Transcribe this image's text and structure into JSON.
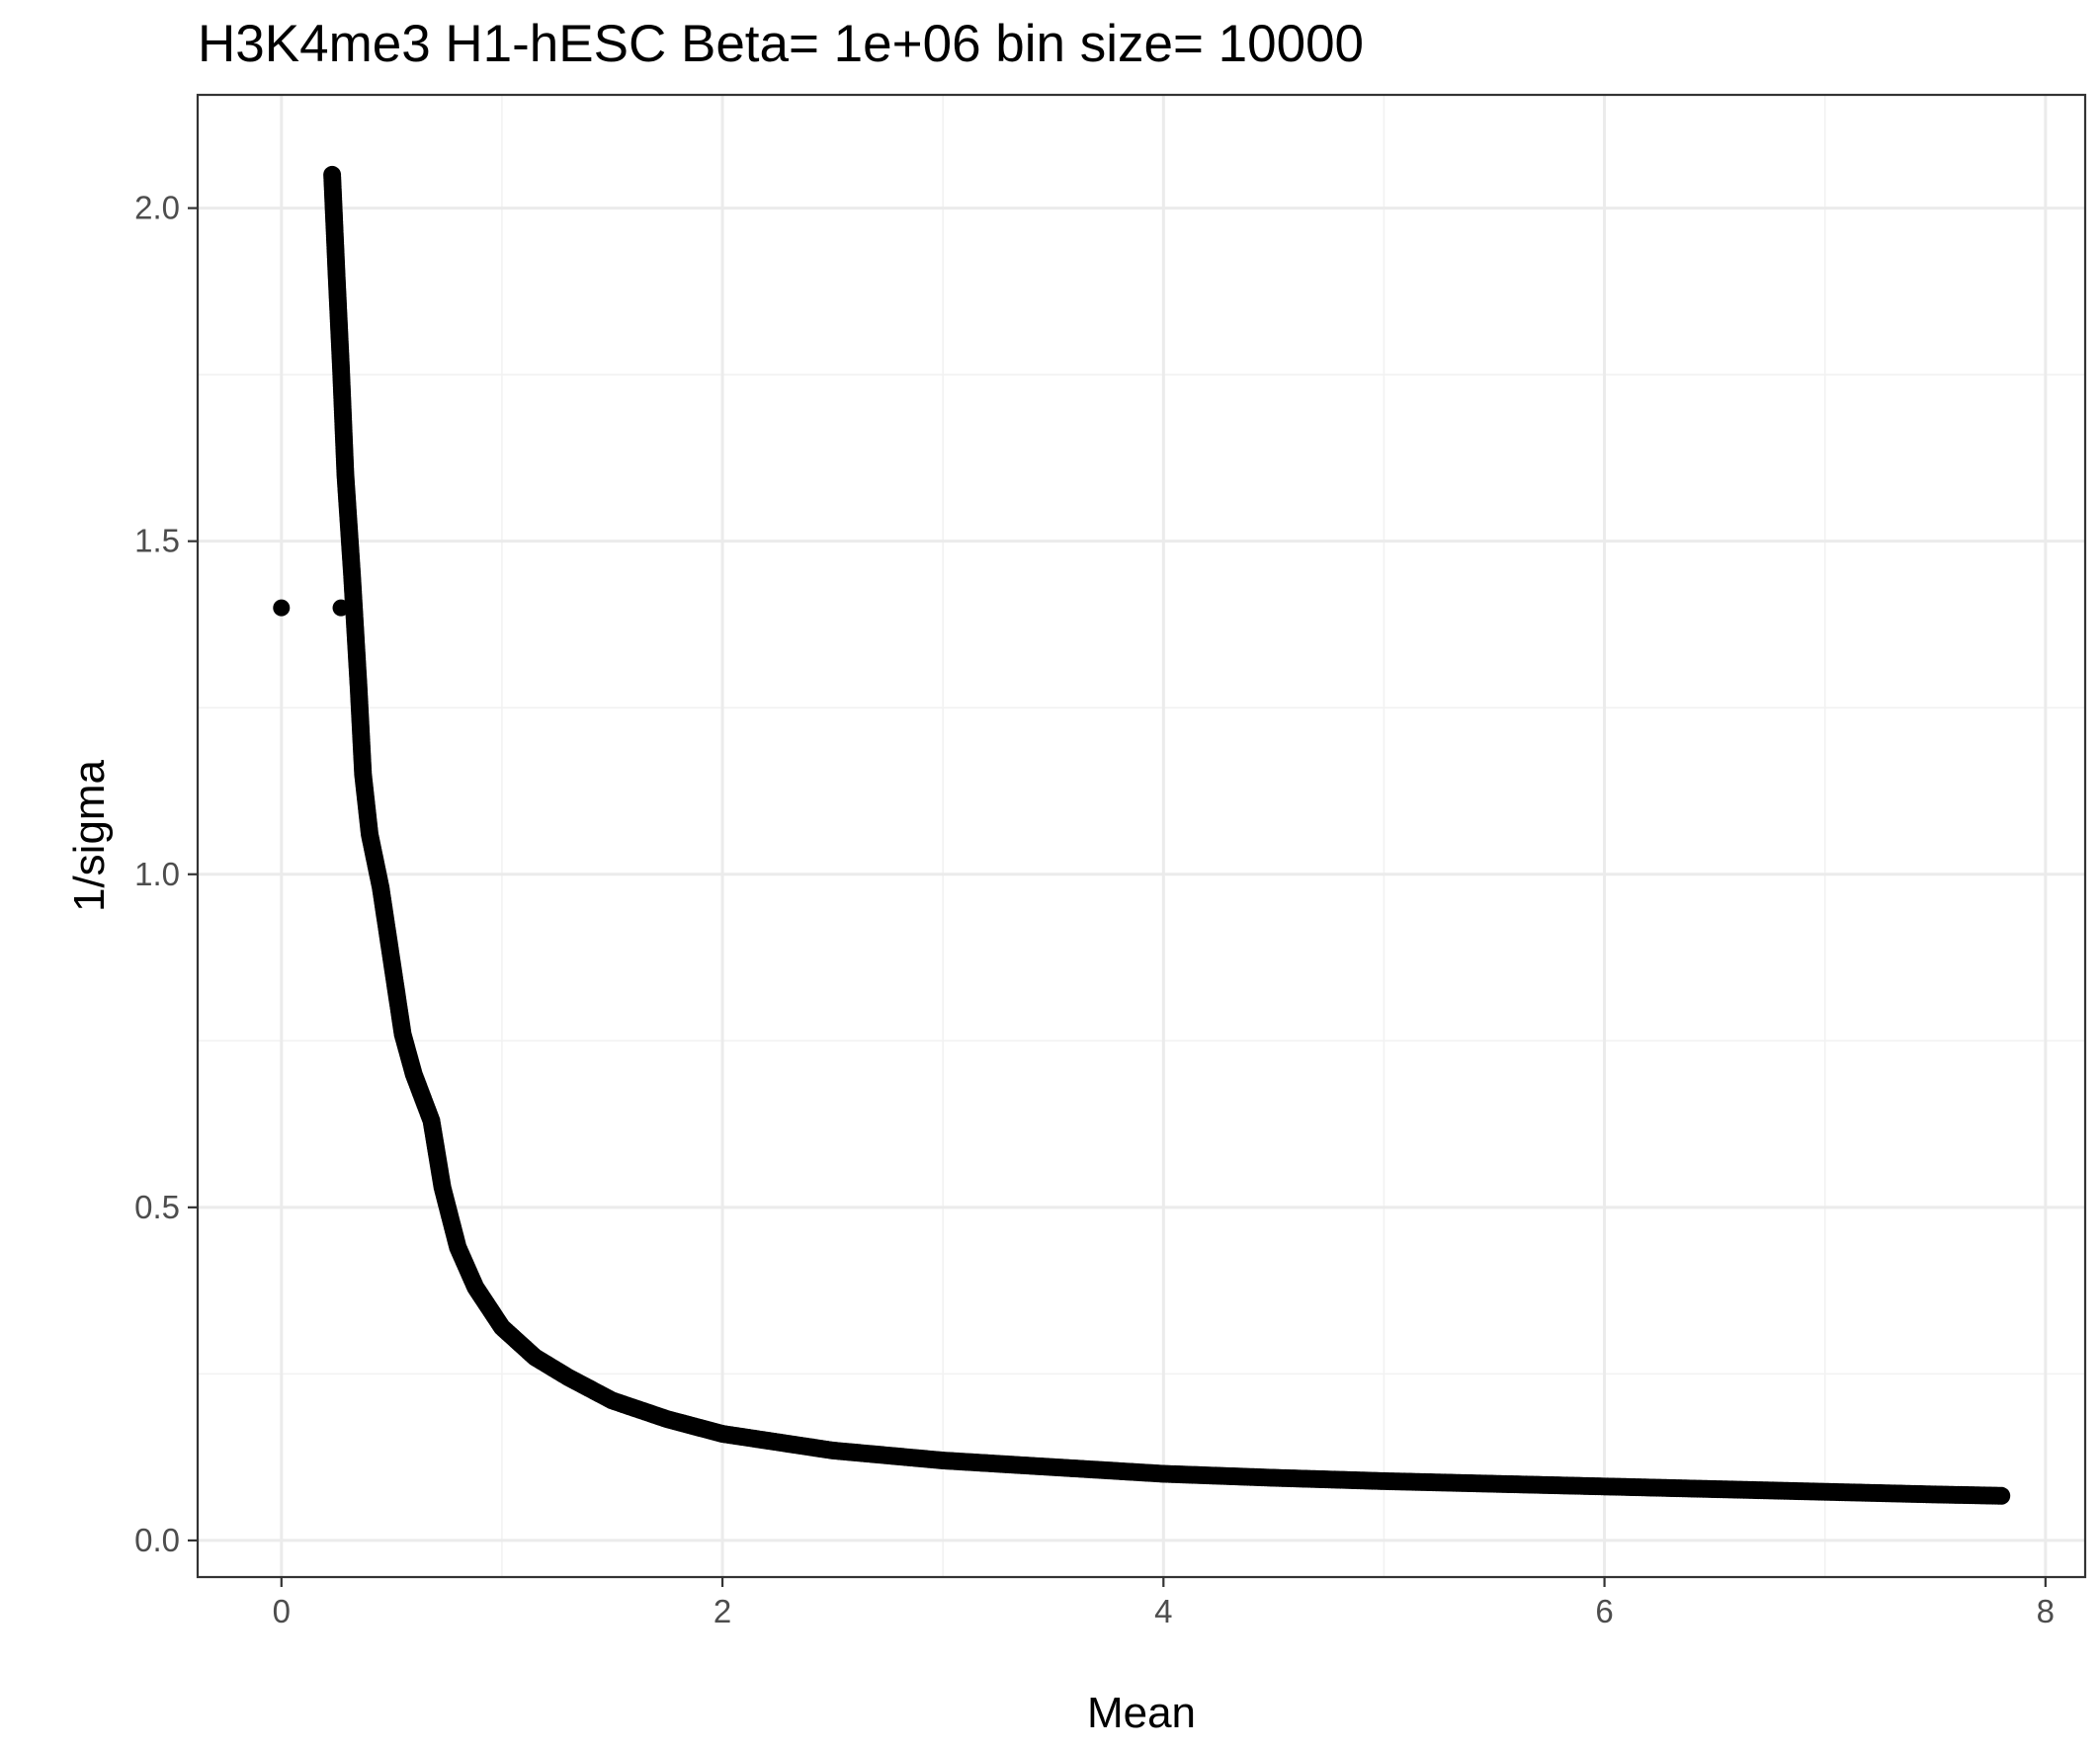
{
  "chart_data": {
    "type": "scatter",
    "title": "H3K4me3 H1-hESC  Beta=  1e+06  bin size=  10000",
    "xlabel": "Mean",
    "ylabel": "1/sigma",
    "xlim": [
      -0.38,
      8.18
    ],
    "ylim": [
      -0.055,
      2.17
    ],
    "x_ticks": [
      0,
      2,
      4,
      6,
      8
    ],
    "y_ticks": [
      0.0,
      0.5,
      1.0,
      1.5,
      2.0
    ],
    "x_tick_labels": [
      "0",
      "2",
      "4",
      "6",
      "8"
    ],
    "y_tick_labels": [
      "0.0",
      "0.5",
      "1.0",
      "1.5",
      "2.0"
    ],
    "grid": true,
    "theme": "black-and-white",
    "point_color": "#000000",
    "series": [
      {
        "values": [
          {
            "x": 0.0,
            "y": 1.4
          },
          {
            "x": 0.27,
            "y": 1.4
          },
          {
            "x": 0.23,
            "y": 2.05
          },
          {
            "x": 0.25,
            "y": 1.9
          },
          {
            "x": 0.27,
            "y": 1.76
          },
          {
            "x": 0.29,
            "y": 1.6
          },
          {
            "x": 0.32,
            "y": 1.45
          },
          {
            "x": 0.35,
            "y": 1.28
          },
          {
            "x": 0.37,
            "y": 1.15
          },
          {
            "x": 0.4,
            "y": 1.06
          },
          {
            "x": 0.45,
            "y": 0.98
          },
          {
            "x": 0.5,
            "y": 0.87
          },
          {
            "x": 0.55,
            "y": 0.76
          },
          {
            "x": 0.6,
            "y": 0.7
          },
          {
            "x": 0.68,
            "y": 0.63
          },
          {
            "x": 0.73,
            "y": 0.53
          },
          {
            "x": 0.8,
            "y": 0.44
          },
          {
            "x": 0.88,
            "y": 0.38
          },
          {
            "x": 1.0,
            "y": 0.32
          },
          {
            "x": 1.15,
            "y": 0.275
          },
          {
            "x": 1.3,
            "y": 0.245
          },
          {
            "x": 1.5,
            "y": 0.21
          },
          {
            "x": 1.75,
            "y": 0.182
          },
          {
            "x": 2.0,
            "y": 0.16
          },
          {
            "x": 2.5,
            "y": 0.135
          },
          {
            "x": 3.0,
            "y": 0.12
          },
          {
            "x": 3.5,
            "y": 0.11
          },
          {
            "x": 4.0,
            "y": 0.1
          },
          {
            "x": 4.5,
            "y": 0.094
          },
          {
            "x": 5.0,
            "y": 0.089
          },
          {
            "x": 5.5,
            "y": 0.085
          },
          {
            "x": 6.0,
            "y": 0.081
          },
          {
            "x": 6.5,
            "y": 0.077
          },
          {
            "x": 7.0,
            "y": 0.073
          },
          {
            "x": 7.5,
            "y": 0.069
          },
          {
            "x": 7.8,
            "y": 0.067
          }
        ]
      }
    ]
  }
}
